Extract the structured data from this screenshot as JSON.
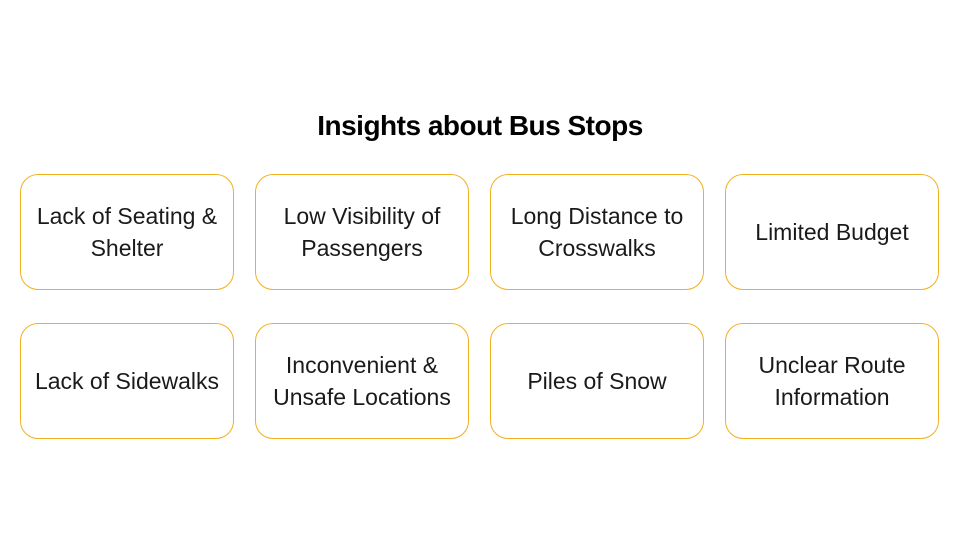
{
  "slide": {
    "title": "Insights about Bus Stops",
    "accent_color": "#f2b01e",
    "cards": [
      {
        "label": "Lack of Seating & Shelter"
      },
      {
        "label": "Low Visibility of Passengers"
      },
      {
        "label": "Long Distance to Crosswalks"
      },
      {
        "label": "Limited Budget"
      },
      {
        "label": "Lack of Sidewalks"
      },
      {
        "label": "Inconvenient & Unsafe Locations"
      },
      {
        "label": "Piles of Snow"
      },
      {
        "label": "Unclear Route Information"
      }
    ]
  }
}
